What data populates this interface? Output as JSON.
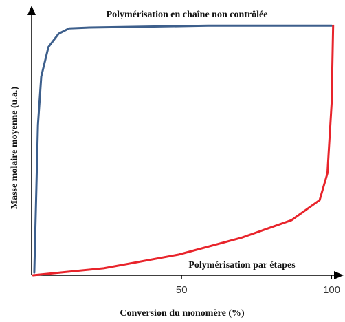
{
  "chart_data": {
    "type": "line",
    "x_label": "Conversion du monomère (%)",
    "y_label": "Masse molaire moyenne (u.a.)",
    "xlim": [
      0,
      104
    ],
    "ylim": [
      0,
      100
    ],
    "xticks": [
      50,
      100
    ],
    "series": [
      {
        "name": "Polymérisation en chaîne non contrôlée",
        "color": "#3d5f8c",
        "x": [
          0.9,
          2.1,
          3.2,
          5.6,
          9,
          12.5,
          19.4,
          58.8,
          100
        ],
        "values": [
          1,
          56,
          74,
          85,
          90,
          92,
          92.3,
          93,
          93
        ]
      },
      {
        "name": "Polymérisation par étapes",
        "color": "#e8242b",
        "x": [
          0.5,
          24,
          49,
          70,
          86.6,
          96,
          98.6,
          100,
          100.5
        ],
        "values": [
          0,
          2.6,
          7.7,
          14,
          20.5,
          28,
          38,
          64,
          93
        ]
      }
    ]
  }
}
